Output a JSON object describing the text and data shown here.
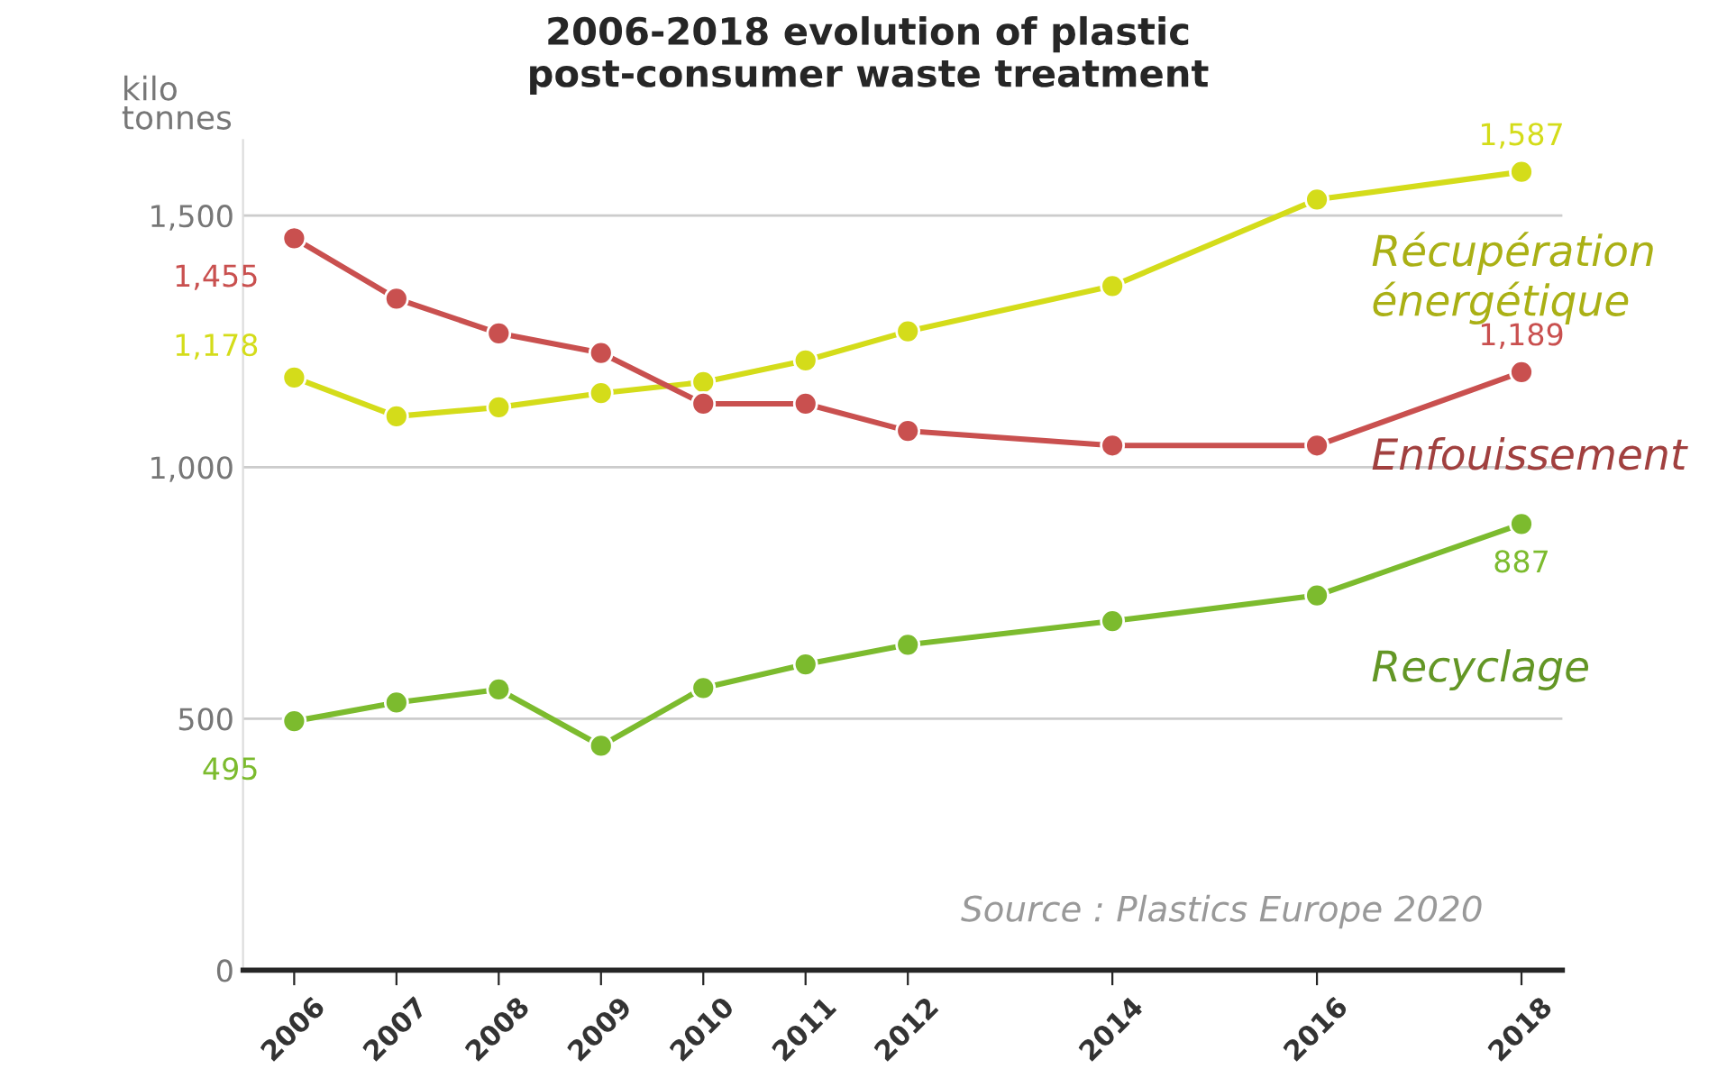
{
  "chart_data": {
    "type": "line",
    "title": "2006-2018 evolution of plastic\npost-consumer waste treatment",
    "ylabel": "kilo\ntonnes",
    "x": [
      2006,
      2007,
      2008,
      2009,
      2010,
      2011,
      2012,
      2014,
      2016,
      2018
    ],
    "xlim": [
      2005.5,
      2018.4
    ],
    "xticks": [
      2006,
      2007,
      2008,
      2009,
      2010,
      2011,
      2012,
      2014,
      2016,
      2018
    ],
    "ylim": [
      0,
      1650
    ],
    "yticks": [
      {
        "value": 0,
        "label": "0"
      },
      {
        "value": 500,
        "label": "500"
      },
      {
        "value": 1000,
        "label": "1,000"
      },
      {
        "value": 1500,
        "label": "1,500"
      }
    ],
    "grid": "y",
    "legend": false,
    "marker": "circle",
    "line_style": "solid",
    "series": [
      {
        "name": "Récupération\nénergétique",
        "color": "#d4dc1a",
        "values": [
          1178,
          1101,
          1119,
          1147,
          1169,
          1212,
          1270,
          1360,
          1532,
          1587
        ],
        "value_labels": [
          "1,178",
          null,
          null,
          null,
          null,
          null,
          null,
          null,
          null,
          "1,587"
        ]
      },
      {
        "name": "Enfouissement",
        "color": "#c9504f",
        "values": [
          1455,
          1335,
          1266,
          1227,
          1126,
          1126,
          1072,
          1043,
          1043,
          1189
        ],
        "value_labels": [
          "1,455",
          null,
          null,
          null,
          null,
          null,
          null,
          null,
          null,
          "1,189"
        ]
      },
      {
        "name": "Recyclage",
        "color": "#7cbb2e",
        "values": [
          495,
          532,
          558,
          446,
          561,
          608,
          647,
          694,
          745,
          887
        ],
        "value_labels": [
          "495",
          null,
          null,
          null,
          null,
          null,
          null,
          null,
          null,
          "887"
        ]
      }
    ],
    "annotations": [
      "Source : Plastics Europe 2020"
    ]
  }
}
